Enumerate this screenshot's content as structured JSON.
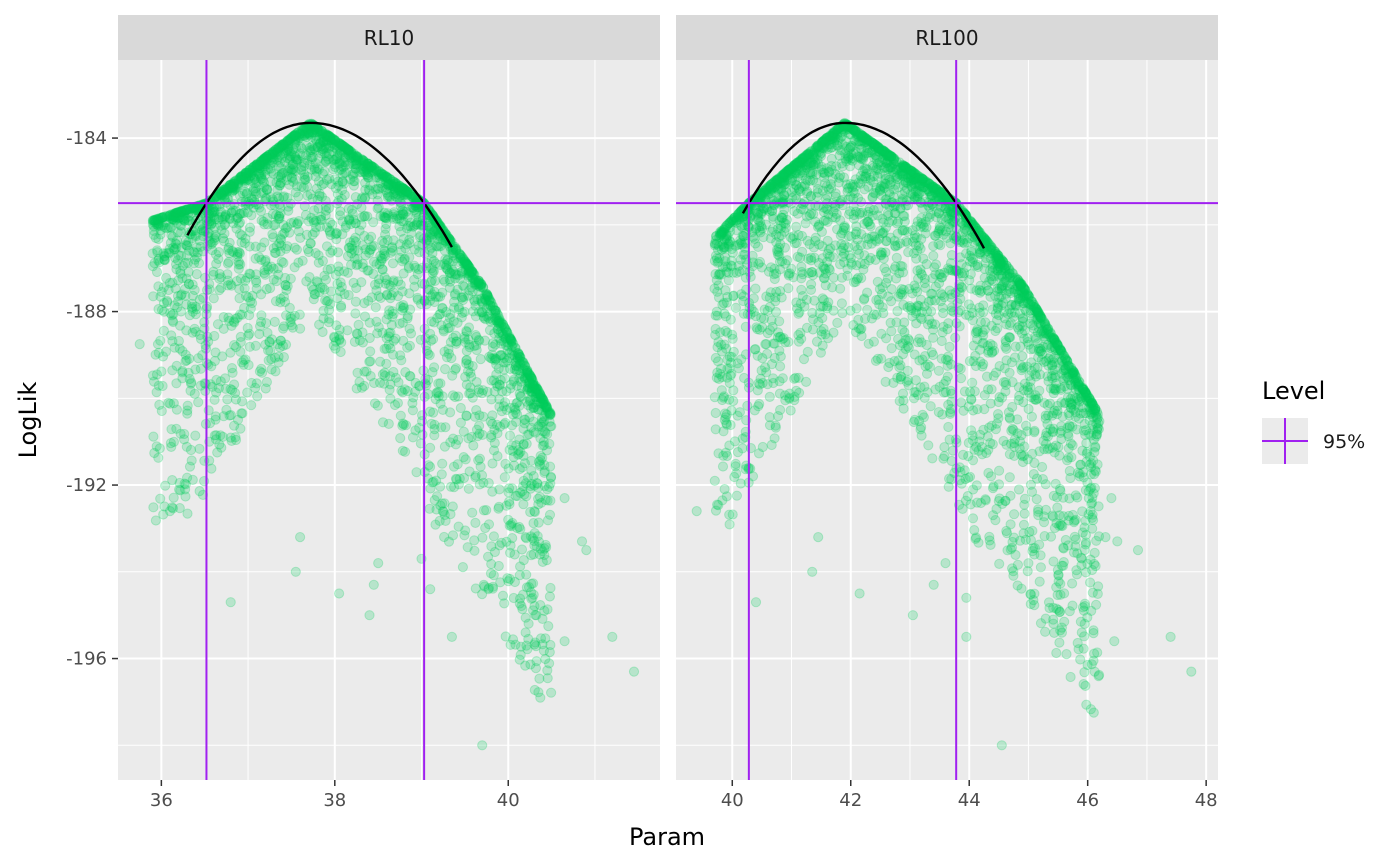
{
  "chart_data": {
    "type": "scatter",
    "title": "",
    "xlabel": "Param",
    "ylabel": "LogLik",
    "ylim": [
      -198.8,
      -182.2
    ],
    "y_ticks": [
      -184,
      -188,
      -192,
      -196
    ],
    "grid": true,
    "legend": {
      "title": "Level",
      "position": "right",
      "entries": [
        {
          "label": "95%",
          "color": "#a020f0"
        }
      ]
    },
    "colors": {
      "points": "#00cc5c",
      "points_opacity": 0.22,
      "curve": "#000000",
      "ci_lines": "#a020f0",
      "panel_bg": "#ebebeb",
      "strip_bg": "#d9d9d9",
      "grid": "#ffffff"
    },
    "hline_y": -185.5,
    "panels": [
      {
        "strip": "RL10",
        "xlim": [
          35.5,
          41.75
        ],
        "x_ticks": [
          36,
          38,
          40
        ],
        "ci": [
          36.52,
          39.03
        ],
        "mode": 37.72,
        "curve_range": [
          36.3,
          39.35
        ],
        "scatter_upper": [
          [
            35.9,
            -185.9
          ],
          [
            36.52,
            -185.5
          ],
          [
            37.72,
            -183.65
          ],
          [
            39.03,
            -185.5
          ],
          [
            39.7,
            -187.4
          ],
          [
            40.5,
            -190.4
          ]
        ],
        "outliers": [
          [
            35.75,
            -188.75
          ],
          [
            36.1,
            -192.6
          ],
          [
            36.8,
            -194.7
          ],
          [
            37.55,
            -194.0
          ],
          [
            38.05,
            -194.5
          ],
          [
            38.4,
            -195.0
          ],
          [
            38.45,
            -194.3
          ],
          [
            38.5,
            -193.8
          ],
          [
            39.0,
            -193.7
          ],
          [
            39.1,
            -194.4
          ],
          [
            39.35,
            -195.5
          ],
          [
            39.7,
            -198.0
          ],
          [
            40.2,
            -195.4
          ],
          [
            40.65,
            -195.6
          ],
          [
            41.2,
            -195.5
          ],
          [
            41.45,
            -196.3
          ],
          [
            40.85,
            -193.3
          ],
          [
            40.9,
            -193.5
          ],
          [
            40.65,
            -192.3
          ],
          [
            40.2,
            -193.2
          ],
          [
            40.0,
            -192.8
          ],
          [
            40.3,
            -192.6
          ],
          [
            37.6,
            -193.2
          ]
        ]
      },
      {
        "strip": "RL100",
        "xlim": [
          39.05,
          48.2
        ],
        "x_ticks": [
          40,
          42,
          44,
          46,
          48
        ],
        "ci": [
          40.28,
          43.78
        ],
        "mode": 41.9,
        "curve_range": [
          40.18,
          44.25
        ],
        "scatter_upper": [
          [
            39.7,
            -186.3
          ],
          [
            40.28,
            -185.5
          ],
          [
            41.9,
            -183.65
          ],
          [
            43.78,
            -185.5
          ],
          [
            44.9,
            -187.4
          ],
          [
            46.2,
            -190.4
          ]
        ],
        "outliers": [
          [
            39.4,
            -192.6
          ],
          [
            40.4,
            -194.7
          ],
          [
            41.35,
            -194.0
          ],
          [
            42.15,
            -194.5
          ],
          [
            43.05,
            -195.0
          ],
          [
            43.4,
            -194.3
          ],
          [
            43.6,
            -193.8
          ],
          [
            43.95,
            -194.6
          ],
          [
            43.95,
            -195.5
          ],
          [
            44.55,
            -198.0
          ],
          [
            45.9,
            -195.4
          ],
          [
            46.45,
            -195.6
          ],
          [
            47.4,
            -195.5
          ],
          [
            47.75,
            -196.3
          ],
          [
            46.85,
            -193.5
          ],
          [
            46.5,
            -193.3
          ],
          [
            46.3,
            -193.2
          ],
          [
            45.8,
            -192.8
          ],
          [
            46.05,
            -192.6
          ],
          [
            46.4,
            -192.3
          ],
          [
            45.1,
            -193.6
          ],
          [
            41.45,
            -193.2
          ]
        ]
      }
    ]
  }
}
